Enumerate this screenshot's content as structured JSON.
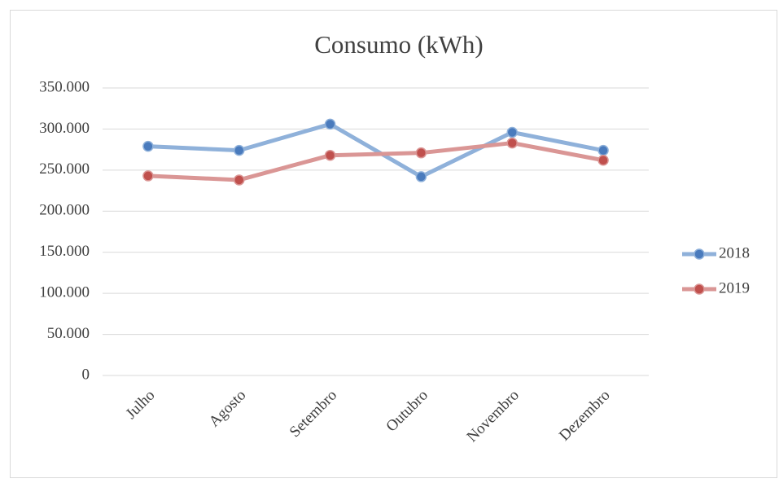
{
  "chart_data": {
    "type": "line",
    "title": "Consumo (kWh)",
    "categories": [
      "Julho",
      "Agosto",
      "Setembro",
      "Outubro",
      "Novembro",
      "Dezembro"
    ],
    "series": [
      {
        "name": "2018",
        "color": "#8fb1da",
        "marker_color": "#4a7bbd",
        "values": [
          279000,
          274000,
          306000,
          242000,
          296000,
          274000
        ]
      },
      {
        "name": "2019",
        "color": "#da9695",
        "marker_color": "#c0504d",
        "values": [
          243000,
          238000,
          268000,
          271000,
          283000,
          262000
        ]
      }
    ],
    "ylim": [
      0,
      350000
    ],
    "yticks": [
      0,
      {
        "value": 50000,
        "label": "50.000"
      },
      {
        "value": 100000,
        "label": "100.000"
      },
      {
        "value": 150000,
        "label": "150.000"
      },
      {
        "value": 200000,
        "label": "200.000"
      },
      {
        "value": 250000,
        "label": "250.000"
      },
      {
        "value": 300000,
        "label": "300.000"
      },
      {
        "value": 350000,
        "label": "350.000"
      }
    ],
    "grid": true,
    "legend": "right"
  }
}
